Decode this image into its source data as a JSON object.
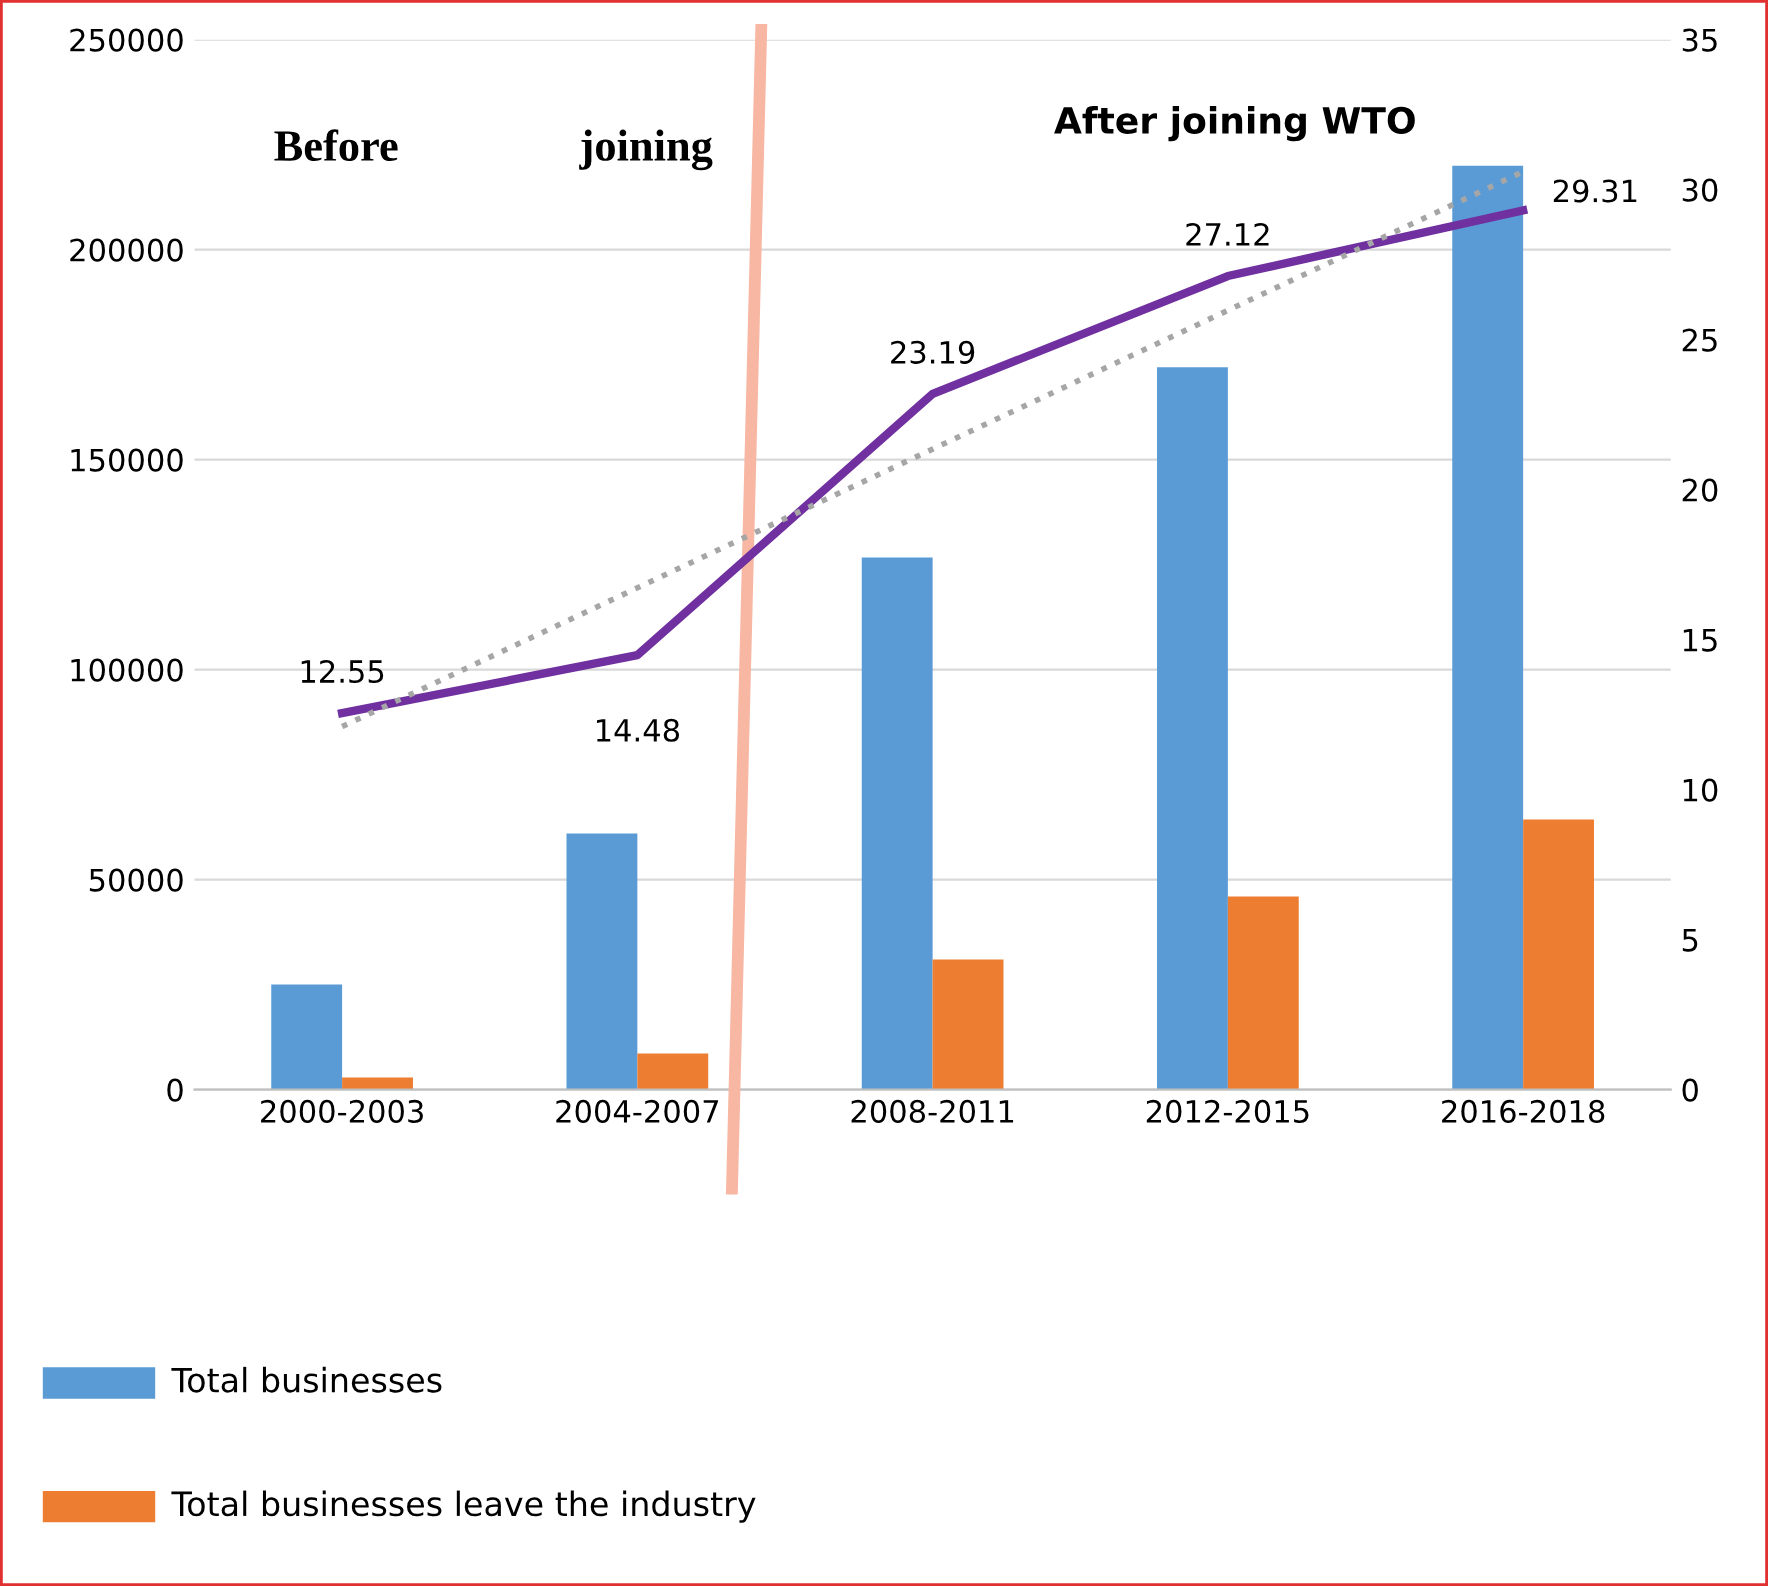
{
  "chart_data": {
    "type": "bar",
    "categories": [
      "2000-2003",
      "2004-2007",
      "2008-2011",
      "2012-2015",
      "2016-2018"
    ],
    "series": [
      {
        "name": "Total businesses",
        "color": "#5b9bd5",
        "values": [
          25000,
          61000,
          126700,
          172000,
          220000
        ]
      },
      {
        "name": "Total businesses leave the industry",
        "color": "#ed7d31",
        "values": [
          2900,
          8600,
          31000,
          46000,
          64300
        ]
      },
      {
        "type": "line",
        "axis": "y2",
        "color": "#7030a0",
        "values": [
          12.55,
          14.48,
          23.19,
          27.12,
          29.31
        ],
        "value_labels": [
          "12.55",
          "14.48",
          "23.19",
          "27.12",
          "29.31"
        ]
      },
      {
        "type": "line",
        "axis": "y2",
        "color": "#a6a6a6",
        "line_style": "dotted",
        "values": [
          12.1,
          null,
          null,
          null,
          30.6
        ]
      }
    ],
    "ylim": [
      0,
      250000
    ],
    "yticks": [
      0,
      50000,
      100000,
      150000,
      200000,
      250000
    ],
    "y2lim": [
      0,
      35
    ],
    "y2ticks": [
      0,
      5,
      10,
      15,
      20,
      25,
      30,
      35
    ],
    "grid": "y",
    "legend": "bottom left",
    "annotations": [
      "Before",
      "joining",
      "After joining WTO"
    ]
  }
}
